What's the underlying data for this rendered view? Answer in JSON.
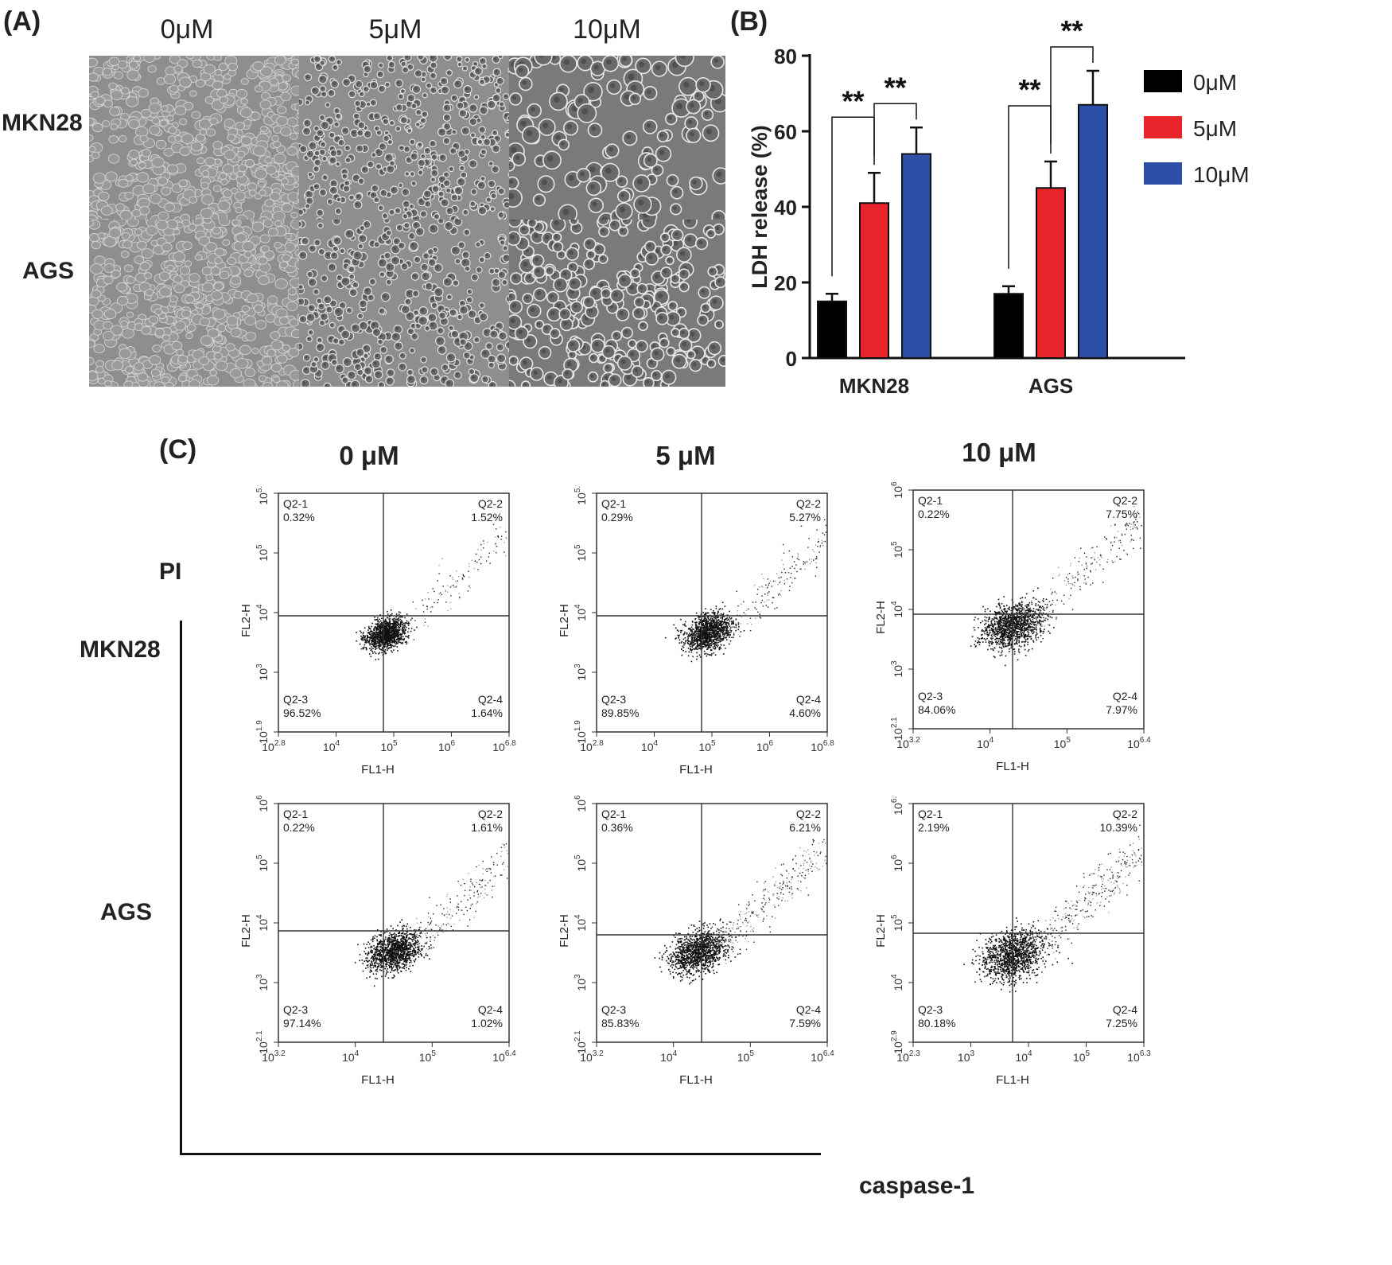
{
  "figure": {
    "panel_a": {
      "label": "(A)",
      "columns": [
        "0μM",
        "5μM",
        "10μM"
      ],
      "rows": [
        "MKN28",
        "AGS"
      ]
    },
    "panel_b_label": "(B)",
    "panel_c": {
      "label": "(C)",
      "conditions": [
        "0 μM",
        "5 μM",
        "10 μM"
      ],
      "rows": [
        "MKN28",
        "AGS"
      ],
      "y_marker": "PI",
      "x_marker": "caspase-1"
    }
  },
  "colors": {
    "zero": "#000000",
    "five": "#e8232a",
    "ten": "#2e4fa8"
  },
  "chart_data": [
    {
      "type": "bar",
      "title": "",
      "ylabel": "LDH release (%)",
      "xlabel": "",
      "ylim": [
        0,
        80
      ],
      "yticks": [
        0,
        20,
        40,
        60,
        80
      ],
      "categories": [
        "MKN28",
        "AGS"
      ],
      "series": [
        {
          "name": "0μM",
          "color": "#000000",
          "values": [
            15,
            17
          ],
          "errors": [
            2,
            2
          ]
        },
        {
          "name": "5μM",
          "color": "#e8232a",
          "values": [
            41,
            45
          ],
          "errors": [
            8,
            7
          ]
        },
        {
          "name": "10μM",
          "color": "#2e4fa8",
          "values": [
            54,
            67
          ],
          "errors": [
            7,
            9
          ]
        }
      ],
      "significance": [
        {
          "category": "MKN28",
          "from": "0μM",
          "to": "5μM",
          "label": "**"
        },
        {
          "category": "MKN28",
          "from": "5μM",
          "to": "10μM",
          "label": "**"
        },
        {
          "category": "AGS",
          "from": "0μM",
          "to": "5μM",
          "label": "**"
        },
        {
          "category": "AGS",
          "from": "5μM",
          "to": "10μM",
          "label": "**"
        }
      ],
      "legend": "right"
    },
    {
      "type": "scatter",
      "title": "MKN28 0 μM",
      "xlabel": "FL1-H",
      "ylabel": "FL2-H",
      "xticks": [
        {
          "b": "10",
          "e": "2.8"
        },
        {
          "b": "10",
          "e": "4"
        },
        {
          "b": "10",
          "e": "5"
        },
        {
          "b": "10",
          "e": "6"
        },
        {
          "b": "10",
          "e": "6.8"
        }
      ],
      "yticks": [
        {
          "b": "10",
          "e": "1.9"
        },
        {
          "b": "10",
          "e": "3"
        },
        {
          "b": "10",
          "e": "4"
        },
        {
          "b": "10",
          "e": "5"
        },
        {
          "b": "10",
          "e": "5.9"
        }
      ],
      "quadrants": [
        {
          "name": "Q2-1",
          "value": "0.32%"
        },
        {
          "name": "Q2-2",
          "value": "1.52%"
        },
        {
          "name": "Q2-3",
          "value": "96.52%"
        },
        {
          "name": "Q2-4",
          "value": "1.64%"
        }
      ]
    },
    {
      "type": "scatter",
      "title": "MKN28 5 μM",
      "xlabel": "FL1-H",
      "ylabel": "FL2-H",
      "xticks": [
        {
          "b": "10",
          "e": "2.8"
        },
        {
          "b": "10",
          "e": "4"
        },
        {
          "b": "10",
          "e": "5"
        },
        {
          "b": "10",
          "e": "6"
        },
        {
          "b": "10",
          "e": "6.8"
        }
      ],
      "yticks": [
        {
          "b": "10",
          "e": "1.9"
        },
        {
          "b": "10",
          "e": "3"
        },
        {
          "b": "10",
          "e": "4"
        },
        {
          "b": "10",
          "e": "5"
        },
        {
          "b": "10",
          "e": "5.9"
        }
      ],
      "quadrants": [
        {
          "name": "Q2-1",
          "value": "0.29%"
        },
        {
          "name": "Q2-2",
          "value": "5.27%"
        },
        {
          "name": "Q2-3",
          "value": "89.85%"
        },
        {
          "name": "Q2-4",
          "value": "4.60%"
        }
      ]
    },
    {
      "type": "scatter",
      "title": "MKN28 10 μM",
      "xlabel": "FL1-H",
      "ylabel": "FL2-H",
      "xticks": [
        {
          "b": "10",
          "e": "3.2"
        },
        {
          "b": "10",
          "e": "4"
        },
        {
          "b": "10",
          "e": "5"
        },
        {
          "b": "10",
          "e": "6.4"
        }
      ],
      "yticks": [
        {
          "b": "10",
          "e": "2.1"
        },
        {
          "b": "10",
          "e": "3"
        },
        {
          "b": "10",
          "e": "4"
        },
        {
          "b": "10",
          "e": "5"
        },
        {
          "b": "10",
          "e": "6"
        }
      ],
      "quadrants": [
        {
          "name": "Q2-1",
          "value": "0.22%"
        },
        {
          "name": "Q2-2",
          "value": "7.75%"
        },
        {
          "name": "Q2-3",
          "value": "84.06%"
        },
        {
          "name": "Q2-4",
          "value": "7.97%"
        }
      ]
    },
    {
      "type": "scatter",
      "title": "AGS 0 μM",
      "xlabel": "FL1-H",
      "ylabel": "FL2-H",
      "xticks": [
        {
          "b": "10",
          "e": "3.2"
        },
        {
          "b": "10",
          "e": "4"
        },
        {
          "b": "10",
          "e": "5"
        },
        {
          "b": "10",
          "e": "6.4"
        }
      ],
      "yticks": [
        {
          "b": "10",
          "e": "2.1"
        },
        {
          "b": "10",
          "e": "3"
        },
        {
          "b": "10",
          "e": "4"
        },
        {
          "b": "10",
          "e": "5"
        },
        {
          "b": "10",
          "e": "6"
        }
      ],
      "quadrants": [
        {
          "name": "Q2-1",
          "value": "0.22%"
        },
        {
          "name": "Q2-2",
          "value": "1.61%"
        },
        {
          "name": "Q2-3",
          "value": "97.14%"
        },
        {
          "name": "Q2-4",
          "value": "1.02%"
        }
      ]
    },
    {
      "type": "scatter",
      "title": "AGS 5 μM",
      "xlabel": "FL1-H",
      "ylabel": "FL2-H",
      "xticks": [
        {
          "b": "10",
          "e": "3.2"
        },
        {
          "b": "10",
          "e": "4"
        },
        {
          "b": "10",
          "e": "5"
        },
        {
          "b": "10",
          "e": "6.4"
        }
      ],
      "yticks": [
        {
          "b": "10",
          "e": "2.1"
        },
        {
          "b": "10",
          "e": "3"
        },
        {
          "b": "10",
          "e": "4"
        },
        {
          "b": "10",
          "e": "5"
        },
        {
          "b": "10",
          "e": "6"
        }
      ],
      "quadrants": [
        {
          "name": "Q2-1",
          "value": "0.36%"
        },
        {
          "name": "Q2-2",
          "value": "6.21%"
        },
        {
          "name": "Q2-3",
          "value": "85.83%"
        },
        {
          "name": "Q2-4",
          "value": "7.59%"
        }
      ]
    },
    {
      "type": "scatter",
      "title": "AGS 10 μM",
      "xlabel": "FL1-H",
      "ylabel": "FL2-H",
      "xticks": [
        {
          "b": "10",
          "e": "2.3"
        },
        {
          "b": "10",
          "e": "3"
        },
        {
          "b": "10",
          "e": "4"
        },
        {
          "b": "10",
          "e": "5"
        },
        {
          "b": "10",
          "e": "6.3"
        }
      ],
      "yticks": [
        {
          "b": "10",
          "e": "2.9"
        },
        {
          "b": "10",
          "e": "4"
        },
        {
          "b": "10",
          "e": "5"
        },
        {
          "b": "10",
          "e": "6"
        },
        {
          "b": "10",
          "e": "6.9"
        }
      ],
      "quadrants": [
        {
          "name": "Q2-1",
          "value": "2.19%"
        },
        {
          "name": "Q2-2",
          "value": "10.39%"
        },
        {
          "name": "Q2-3",
          "value": "80.18%"
        },
        {
          "name": "Q2-4",
          "value": "7.25%"
        }
      ]
    }
  ]
}
